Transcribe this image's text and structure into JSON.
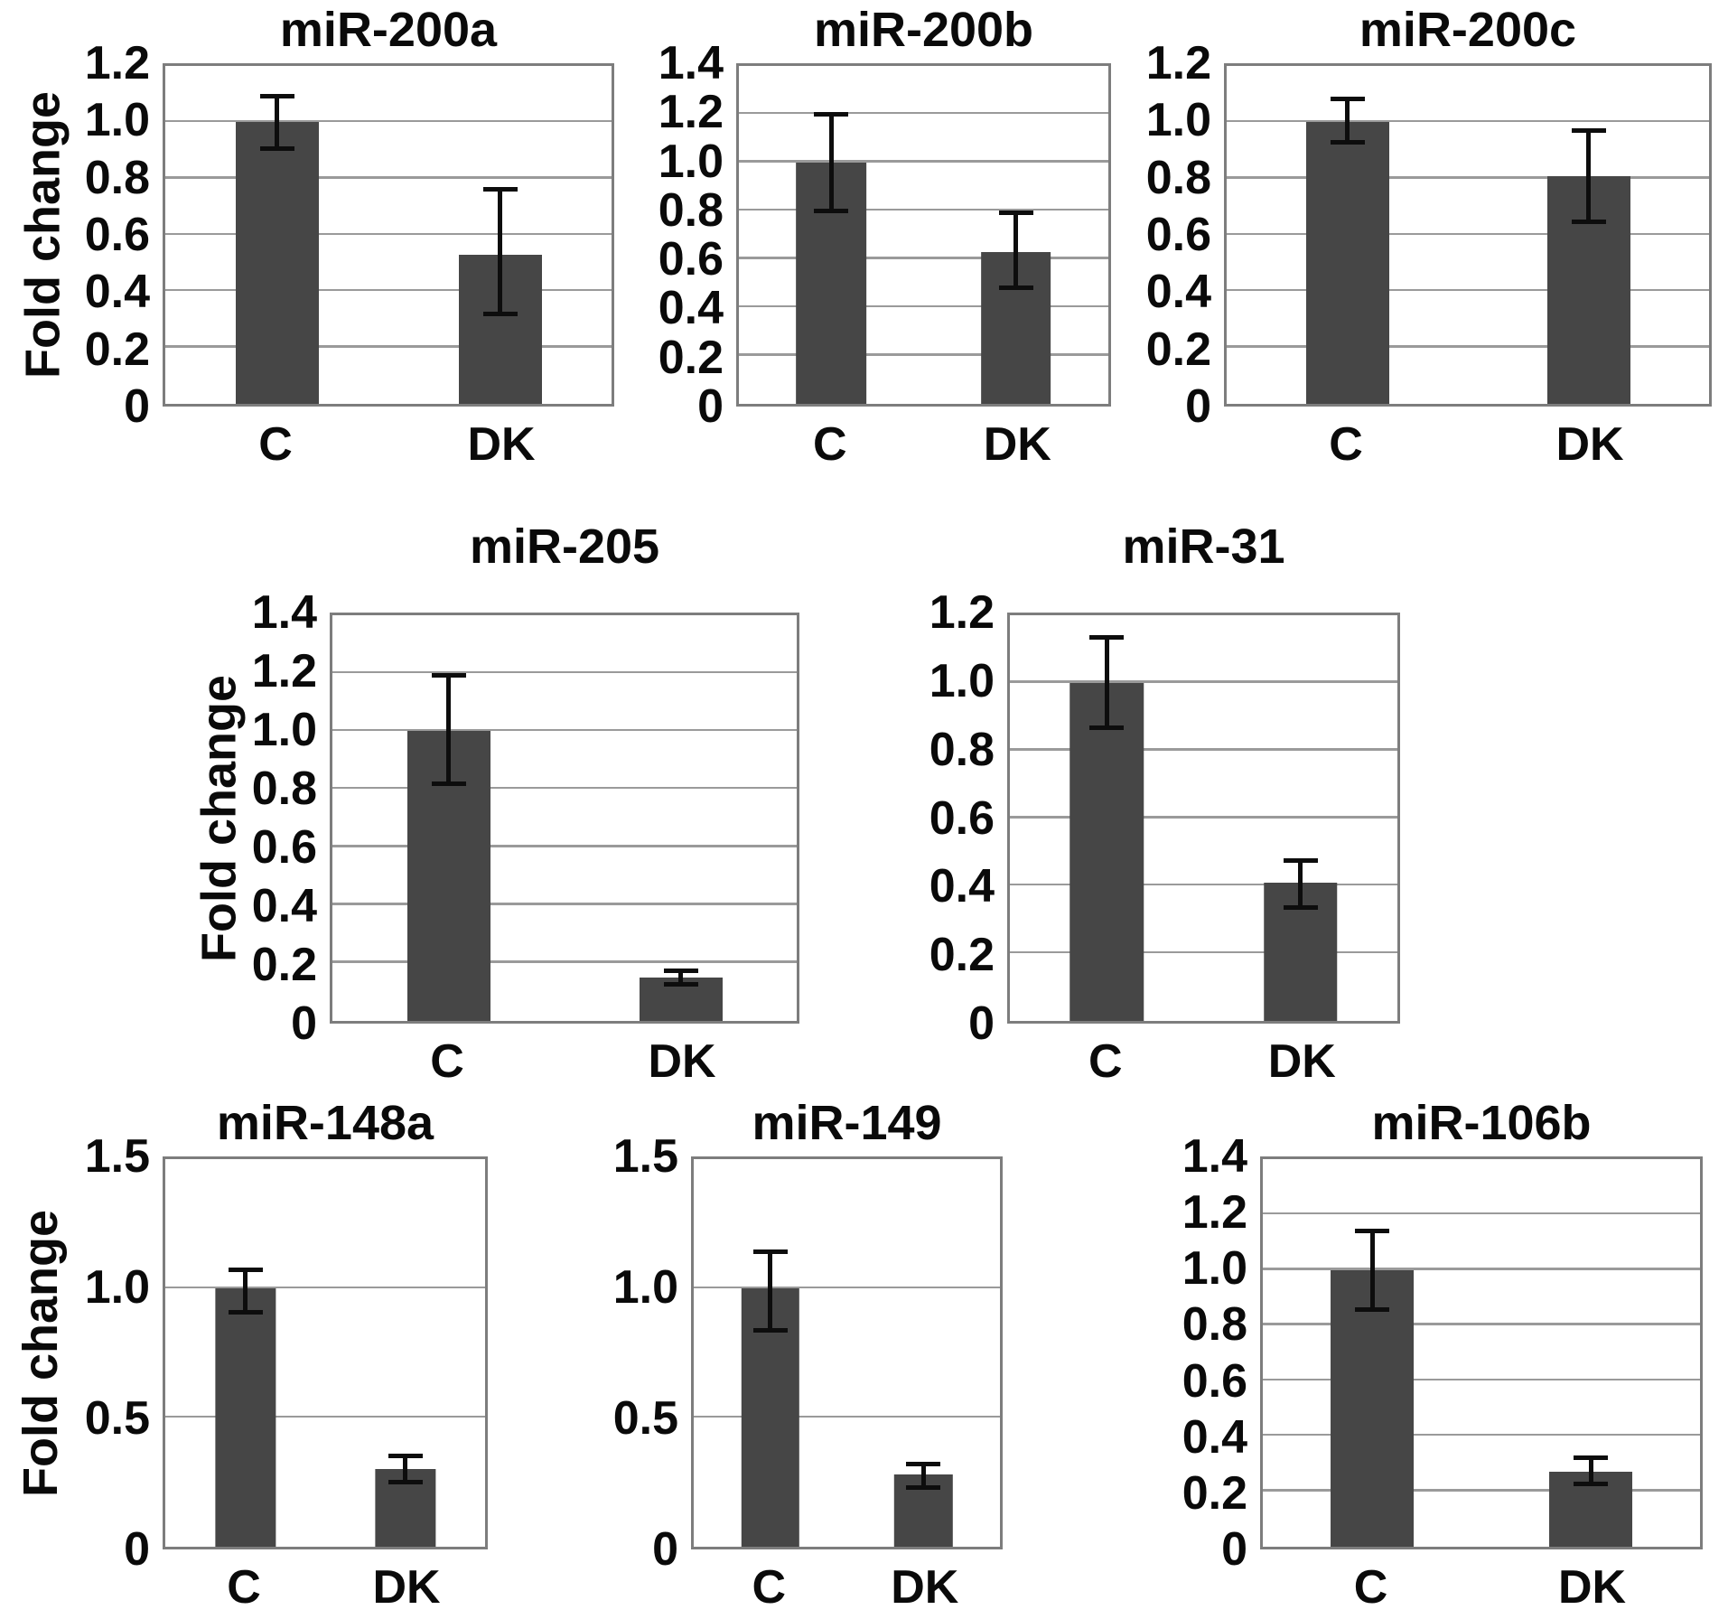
{
  "figure": {
    "ylabel": "Fold change",
    "bar_color": "#464646",
    "gridline_color": "#9a9a9a",
    "frame_color": "#7d7d7d",
    "error_bar_color": "#0d0d0d",
    "categories": [
      "C",
      "DK"
    ]
  },
  "chart_data": [
    {
      "type": "bar",
      "title": "miR-200a",
      "ylabel": "Fold change",
      "categories": [
        "C",
        "DK"
      ],
      "values": [
        1.0,
        0.53
      ],
      "errors_up": [
        0.1,
        0.24
      ],
      "errors_down": [
        0.1,
        0.22
      ],
      "ylim": [
        0,
        1.2
      ],
      "yticks": [
        "1.2",
        "1.0",
        "0.8",
        "0.6",
        "0.4",
        "0.2",
        "0"
      ],
      "grid": true,
      "legend": false
    },
    {
      "type": "bar",
      "title": "miR-200b",
      "categories": [
        "C",
        "DK"
      ],
      "values": [
        1.0,
        0.63
      ],
      "errors_up": [
        0.21,
        0.17
      ],
      "errors_down": [
        0.21,
        0.16
      ],
      "ylim": [
        0,
        1.4
      ],
      "yticks": [
        "1.4",
        "1.2",
        "1.0",
        "0.8",
        "0.6",
        "0.4",
        "0.2",
        "0"
      ],
      "grid": true,
      "legend": false
    },
    {
      "type": "bar",
      "title": "miR-200c",
      "categories": [
        "C",
        "DK"
      ],
      "values": [
        1.0,
        0.81
      ],
      "errors_up": [
        0.09,
        0.17
      ],
      "errors_down": [
        0.08,
        0.17
      ],
      "ylim": [
        0,
        1.2
      ],
      "yticks": [
        "1.2",
        "1.0",
        "0.8",
        "0.6",
        "0.4",
        "0.2",
        "0"
      ],
      "grid": true,
      "legend": false
    },
    {
      "type": "bar",
      "title": "miR-205",
      "ylabel": "Fold change",
      "categories": [
        "C",
        "DK"
      ],
      "values": [
        1.0,
        0.15
      ],
      "errors_up": [
        0.2,
        0.03
      ],
      "errors_down": [
        0.19,
        0.03
      ],
      "ylim": [
        0,
        1.4
      ],
      "yticks": [
        "1.4",
        "1.2",
        "1.0",
        "0.8",
        "0.6",
        "0.4",
        "0.2",
        "0"
      ],
      "grid": true,
      "legend": false
    },
    {
      "type": "bar",
      "title": "miR-31",
      "categories": [
        "C",
        "DK"
      ],
      "values": [
        1.0,
        0.41
      ],
      "errors_up": [
        0.14,
        0.07
      ],
      "errors_down": [
        0.14,
        0.08
      ],
      "ylim": [
        0,
        1.2
      ],
      "yticks": [
        "1.2",
        "1.0",
        "0.8",
        "0.6",
        "0.4",
        "0.2",
        "0"
      ],
      "grid": true,
      "legend": false
    },
    {
      "type": "bar",
      "title": "miR-148a",
      "ylabel": "Fold change",
      "categories": [
        "C",
        "DK"
      ],
      "values": [
        1.0,
        0.3
      ],
      "errors_up": [
        0.08,
        0.06
      ],
      "errors_down": [
        0.1,
        0.06
      ],
      "ylim": [
        0,
        1.5
      ],
      "yticks": [
        "1.5",
        "1.0",
        "0.5",
        "0"
      ],
      "grid": true,
      "legend": false
    },
    {
      "type": "bar",
      "title": "miR-149",
      "categories": [
        "C",
        "DK"
      ],
      "values": [
        1.0,
        0.28
      ],
      "errors_up": [
        0.15,
        0.05
      ],
      "errors_down": [
        0.17,
        0.06
      ],
      "ylim": [
        0,
        1.5
      ],
      "yticks": [
        "1.5",
        "1.0",
        "0.5",
        "0"
      ],
      "grid": true,
      "legend": false
    },
    {
      "type": "bar",
      "title": "miR-106b",
      "categories": [
        "C",
        "DK"
      ],
      "values": [
        1.0,
        0.27
      ],
      "errors_up": [
        0.15,
        0.06
      ],
      "errors_down": [
        0.15,
        0.05
      ],
      "ylim": [
        0,
        1.4
      ],
      "yticks": [
        "1.4",
        "1.2",
        "1.0",
        "0.8",
        "0.6",
        "0.4",
        "0.2",
        "0"
      ],
      "grid": true,
      "legend": false
    }
  ]
}
